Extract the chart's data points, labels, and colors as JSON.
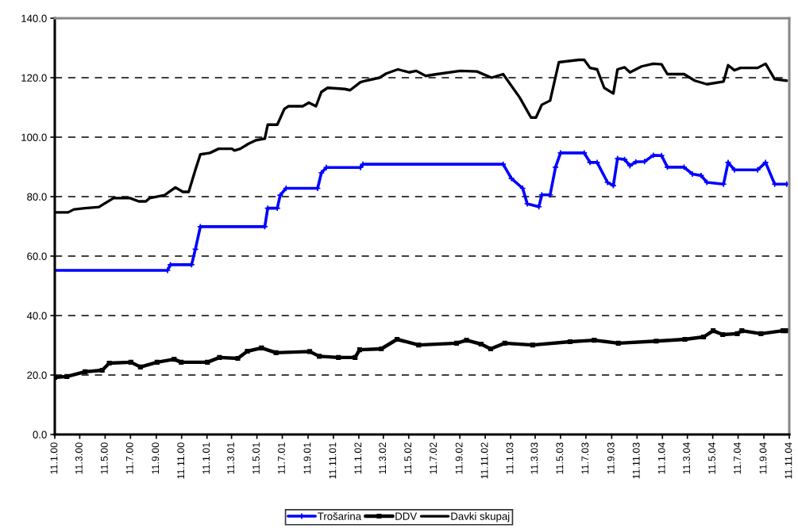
{
  "chart_data": {
    "type": "line",
    "xlim": [
      "2000-01-11",
      "2004-11-11"
    ],
    "xticks": [
      {
        "value": "2000-01-11",
        "label": "11.1.00"
      },
      {
        "value": "2000-03-11",
        "label": "11.3.00"
      },
      {
        "value": "2000-05-11",
        "label": "11.5.00"
      },
      {
        "value": "2000-07-11",
        "label": "11.7.00"
      },
      {
        "value": "2000-09-11",
        "label": "11.9.00"
      },
      {
        "value": "2000-11-11",
        "label": "11.11.00"
      },
      {
        "value": "2001-01-11",
        "label": "11.1.01"
      },
      {
        "value": "2001-03-11",
        "label": "11.3.01"
      },
      {
        "value": "2001-05-11",
        "label": "11.5.01"
      },
      {
        "value": "2001-07-11",
        "label": "11.7.01"
      },
      {
        "value": "2001-09-11",
        "label": "11.9.01"
      },
      {
        "value": "2001-11-11",
        "label": "11.11.01"
      },
      {
        "value": "2002-01-11",
        "label": "11.1.02"
      },
      {
        "value": "2002-03-11",
        "label": "11.3.02"
      },
      {
        "value": "2002-05-11",
        "label": "11.5.02"
      },
      {
        "value": "2002-07-11",
        "label": "11.7.02"
      },
      {
        "value": "2002-09-11",
        "label": "11.9.02"
      },
      {
        "value": "2002-11-11",
        "label": "11.11.02"
      },
      {
        "value": "2003-01-11",
        "label": "11.1.03"
      },
      {
        "value": "2003-03-11",
        "label": "11.3.03"
      },
      {
        "value": "2003-05-11",
        "label": "11.5.03"
      },
      {
        "value": "2003-07-11",
        "label": "11.7.03"
      },
      {
        "value": "2003-09-11",
        "label": "11.9.03"
      },
      {
        "value": "2003-11-11",
        "label": "11.11.03"
      },
      {
        "value": "2004-01-11",
        "label": "11.1.04"
      },
      {
        "value": "2004-03-11",
        "label": "11.3.04"
      },
      {
        "value": "2004-05-11",
        "label": "11.5.04"
      },
      {
        "value": "2004-07-11",
        "label": "11.7.04"
      },
      {
        "value": "2004-09-11",
        "label": "11.9.04"
      },
      {
        "value": "2004-11-11",
        "label": "11.11.04"
      }
    ],
    "ylim": [
      0,
      140
    ],
    "yticks": [
      {
        "value": 0,
        "label": "0.0"
      },
      {
        "value": 20,
        "label": "20.0"
      },
      {
        "value": 40,
        "label": "40.0"
      },
      {
        "value": 60,
        "label": "60.0"
      },
      {
        "value": 80,
        "label": "80.0"
      },
      {
        "value": 100,
        "label": "100.0"
      },
      {
        "value": 120,
        "label": "120.0"
      },
      {
        "value": 140,
        "label": "140.0"
      }
    ],
    "grid": "y",
    "legend": "bottom",
    "series": [
      {
        "name": "Trošarina",
        "color": "#0000ff",
        "marker": "cross",
        "x": [
          "2000-01-11",
          "2000-10-08",
          "2000-10-15",
          "2000-12-05",
          "2000-12-14",
          "2000-12-26",
          "2001-05-30",
          "2001-06-06",
          "2001-06-29",
          "2001-07-06",
          "2001-07-20",
          "2001-10-04",
          "2001-10-13",
          "2001-10-25",
          "2002-01-15",
          "2002-01-21",
          "2002-12-24",
          "2003-01-13",
          "2003-02-09",
          "2003-02-20",
          "2003-03-20",
          "2003-03-27",
          "2003-04-16",
          "2003-04-29",
          "2003-05-11",
          "2003-07-07",
          "2003-07-21",
          "2003-08-07",
          "2003-09-01",
          "2003-09-15",
          "2003-09-25",
          "2003-10-12",
          "2003-10-25",
          "2003-11-08",
          "2003-11-29",
          "2003-12-20",
          "2004-01-09",
          "2004-01-23",
          "2004-03-03",
          "2004-03-23",
          "2004-04-13",
          "2004-04-27",
          "2004-06-06",
          "2004-06-17",
          "2004-07-02",
          "2004-08-27",
          "2004-09-15",
          "2004-10-07",
          "2004-11-05"
        ],
        "values": [
          55.2,
          55.2,
          57.1,
          57.1,
          62.3,
          69.9,
          69.9,
          76.1,
          76.1,
          80.5,
          82.8,
          82.8,
          88.0,
          89.8,
          89.8,
          90.9,
          90.9,
          86.1,
          82.8,
          77.6,
          76.6,
          80.6,
          80.6,
          89.9,
          94.7,
          94.7,
          91.5,
          91.5,
          84.8,
          83.7,
          92.8,
          92.5,
          90.4,
          91.7,
          91.8,
          93.9,
          93.8,
          89.9,
          89.9,
          87.6,
          87.1,
          84.8,
          84.2,
          91.5,
          89.0,
          89.0,
          91.5,
          84.2,
          84.2
        ]
      },
      {
        "name": "DDV",
        "color": "#000000",
        "marker": "square",
        "x": [
          "2000-01-11",
          "2000-02-09",
          "2000-03-24",
          "2000-05-04",
          "2000-05-21",
          "2000-07-12",
          "2000-08-04",
          "2000-09-13",
          "2000-10-24",
          "2000-11-10",
          "2001-01-12",
          "2001-02-10",
          "2001-03-26",
          "2001-04-18",
          "2001-05-22",
          "2001-06-26",
          "2001-09-15",
          "2001-10-08",
          "2001-11-23",
          "2002-01-02",
          "2002-01-13",
          "2002-03-06",
          "2002-04-13",
          "2002-06-04",
          "2002-09-03",
          "2002-09-27",
          "2002-11-01",
          "2002-11-24",
          "2002-12-28",
          "2003-03-05",
          "2003-06-03",
          "2003-07-31",
          "2003-09-27",
          "2003-12-27",
          "2004-03-05",
          "2004-04-19",
          "2004-05-12",
          "2004-06-04",
          "2004-07-09",
          "2004-07-20",
          "2004-09-04",
          "2004-10-27",
          "2004-11-05"
        ],
        "values": [
          19.2,
          19.5,
          21.1,
          21.6,
          24.0,
          24.3,
          22.7,
          24.3,
          25.3,
          24.3,
          24.3,
          25.9,
          25.6,
          28.0,
          29.1,
          27.5,
          27.9,
          26.3,
          25.9,
          25.9,
          28.5,
          28.8,
          32.0,
          30.1,
          30.7,
          31.7,
          30.4,
          28.8,
          30.7,
          30.1,
          31.2,
          31.7,
          30.7,
          31.4,
          32.0,
          32.8,
          34.9,
          33.6,
          33.9,
          34.9,
          33.9,
          34.9,
          34.9
        ]
      },
      {
        "name": "Davki skupaj",
        "color": "#000000",
        "x": [
          "2000-01-11",
          "2000-02-12",
          "2000-02-26",
          "2000-03-23",
          "2000-04-26",
          "2000-05-31",
          "2000-07-10",
          "2000-07-31",
          "2000-08-17",
          "2000-08-26",
          "2000-10-01",
          "2000-10-27",
          "2000-11-14",
          "2000-11-28",
          "2000-12-14",
          "2000-12-26",
          "2001-01-18",
          "2001-02-08",
          "2001-03-12",
          "2001-03-18",
          "2001-04-01",
          "2001-04-21",
          "2001-05-09",
          "2001-05-30",
          "2001-06-06",
          "2001-06-29",
          "2001-07-16",
          "2001-07-26",
          "2001-08-29",
          "2001-09-13",
          "2001-09-30",
          "2001-10-13",
          "2001-10-28",
          "2001-12-08",
          "2001-12-21",
          "2002-01-15",
          "2002-01-28",
          "2002-03-02",
          "2002-03-18",
          "2002-04-15",
          "2002-05-12",
          "2002-05-29",
          "2002-06-21",
          "2002-07-18",
          "2002-09-12",
          "2002-10-22",
          "2002-11-26",
          "2002-12-24",
          "2003-02-02",
          "2003-03-01",
          "2003-03-13",
          "2003-03-27",
          "2003-04-16",
          "2003-05-07",
          "2003-06-24",
          "2003-07-07",
          "2003-07-21",
          "2003-08-07",
          "2003-08-24",
          "2003-09-15",
          "2003-09-25",
          "2003-10-12",
          "2003-10-25",
          "2003-11-22",
          "2003-12-20",
          "2004-01-09",
          "2004-01-23",
          "2004-03-03",
          "2004-03-29",
          "2004-04-27",
          "2004-06-06",
          "2004-06-17",
          "2004-07-02",
          "2004-07-17",
          "2004-08-27",
          "2004-09-15",
          "2004-10-07",
          "2004-11-05"
        ],
        "values": [
          74.7,
          74.7,
          75.7,
          76.1,
          76.5,
          79.5,
          79.5,
          78.4,
          78.4,
          79.5,
          80.5,
          83.1,
          81.6,
          81.6,
          89.0,
          94.2,
          94.7,
          96.1,
          96.1,
          95.5,
          96.1,
          97.8,
          99.0,
          99.5,
          104.2,
          104.2,
          109.5,
          110.4,
          110.4,
          111.6,
          110.4,
          115.2,
          116.6,
          116.2,
          115.8,
          118.5,
          119.0,
          120.0,
          121.4,
          122.8,
          121.8,
          122.3,
          120.6,
          121.2,
          122.3,
          122.1,
          120.0,
          121.2,
          113.3,
          106.6,
          106.6,
          110.9,
          112.3,
          125.2,
          126.0,
          126.0,
          123.3,
          122.8,
          116.6,
          114.7,
          122.8,
          123.5,
          121.8,
          123.8,
          124.7,
          124.5,
          121.2,
          121.2,
          119.0,
          117.8,
          118.7,
          124.2,
          122.5,
          123.3,
          123.3,
          124.7,
          119.5,
          119.0
        ]
      }
    ]
  }
}
